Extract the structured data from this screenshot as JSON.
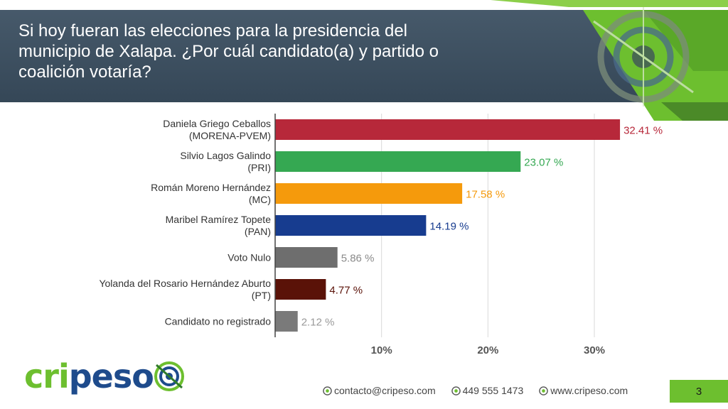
{
  "slide": {
    "title_lines": [
      "Si hoy fueran las elecciones para la presidencia del",
      "municipio de Xalapa. ¿Por cuál candidato(a) y partido o",
      "coalición votaría?"
    ],
    "page_number": "3"
  },
  "colors": {
    "title_band": "#3b4f61",
    "accent_green": "#6dbf2f",
    "accent_green_dark": "#2f7a2b",
    "logo_blue": "#1e4b8c"
  },
  "chart_data": {
    "type": "bar",
    "orientation": "horizontal",
    "title": "Si hoy fueran las elecciones para la presidencia del municipio de Xalapa. ¿Por cuál candidato(a) y partido o coalición votaría?",
    "categories": [
      [
        "Daniela Griego Ceballos",
        "(MORENA-PVEM)"
      ],
      [
        "Silvio Lagos Galindo",
        "(PRI)"
      ],
      [
        "Román Moreno Hernández",
        "(MC)"
      ],
      [
        "Maribel Ramírez Topete",
        "(PAN)"
      ],
      [
        "Voto Nulo"
      ],
      [
        "Yolanda del Rosario Hernández Aburto",
        "(PT)"
      ],
      [
        "Candidato no registrado"
      ]
    ],
    "values": [
      32.41,
      23.07,
      17.58,
      14.19,
      5.86,
      4.77,
      2.12
    ],
    "value_labels": [
      "32.41 %",
      "23.07 %",
      "17.58 %",
      "14.19 %",
      "5.86 %",
      "4.77 %",
      "2.12 %"
    ],
    "bar_colors": [
      "#b7283a",
      "#35a852",
      "#f59a0c",
      "#173c8f",
      "#6e6e6e",
      "#5a1208",
      "#7a7a7a"
    ],
    "label_colors": [
      "#b7283a",
      "#35a852",
      "#f59a0c",
      "#173c8f",
      "#8a8a8a",
      "#5a1208",
      "#9a9a9a"
    ],
    "x_ticks": [
      10,
      20,
      30
    ],
    "x_tick_labels": [
      "10%",
      "20%",
      "30%"
    ],
    "xlim": [
      0,
      34
    ],
    "grid": true,
    "xlabel": "",
    "ylabel": ""
  },
  "logo": {
    "parts": [
      "cri",
      "peso"
    ],
    "colors": [
      "#6dbf2f",
      "#1e4b8c"
    ]
  },
  "footer": {
    "contacts": [
      {
        "icon": "email-icon",
        "text": "contacto@cripeso.com"
      },
      {
        "icon": "phone-icon",
        "text": "449 555 1473"
      },
      {
        "icon": "web-icon",
        "text": "www.cripeso.com"
      }
    ]
  }
}
